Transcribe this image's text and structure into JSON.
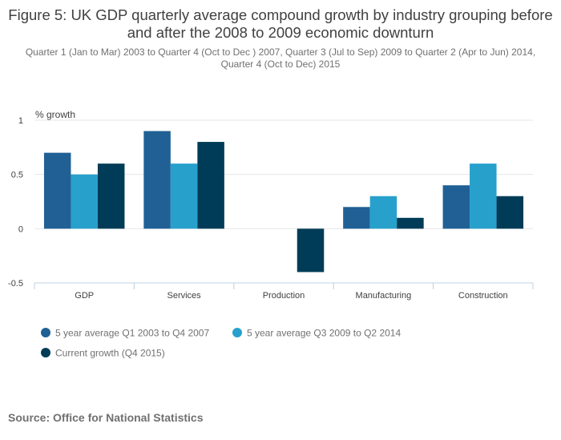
{
  "chart_data": {
    "type": "bar",
    "title": "Figure 5: UK GDP quarterly average compound growth by industry grouping before and after the 2008 to 2009 economic downturn",
    "subtitle": "Quarter 1 (Jan to Mar) 2003 to Quarter 4 (Oct to Dec ) 2007, Quarter 3 (Jul to Sep) 2009 to Quarter 2 (Apr to Jun) 2014, Quarter 4 (Oct to Dec) 2015",
    "ylabel": "% growth",
    "xlabel": "",
    "ylim": [
      -0.5,
      1
    ],
    "yticks": [
      {
        "value": 1,
        "label": "1"
      },
      {
        "value": 0.5,
        "label": "0.5"
      },
      {
        "value": 0,
        "label": "0"
      },
      {
        "value": -0.5,
        "label": "-0.5"
      }
    ],
    "categories": [
      "GDP",
      "Services",
      "Production",
      "Manufacturing",
      "Construction"
    ],
    "series": [
      {
        "name": "5 year average Q1 2003 to Q4 2007",
        "color": "#206095",
        "values": [
          0.7,
          0.9,
          0.0,
          0.2,
          0.4
        ]
      },
      {
        "name": "5 year average Q3 2009 to Q2 2014",
        "color": "#27a0cc",
        "values": [
          0.5,
          0.6,
          0.0,
          0.3,
          0.6
        ]
      },
      {
        "name": "Current growth (Q4 2015)",
        "color": "#003c57",
        "values": [
          0.6,
          0.8,
          -0.4,
          0.1,
          0.3
        ]
      }
    ],
    "grid": true,
    "legend": "bottom-left"
  },
  "source": "Source: Office for National Statistics",
  "colors": {
    "gridline": "#e6e6e6",
    "axis": "#c0d0e0",
    "text": "#414042",
    "muted": "#707071"
  }
}
